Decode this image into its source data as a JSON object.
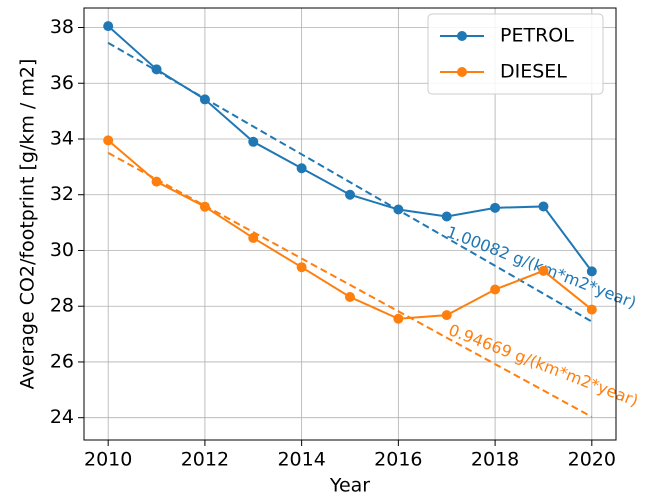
{
  "chart_data": {
    "type": "line",
    "xlabel": "Year",
    "ylabel": "Average CO2/footprint [g/km / m2]",
    "x": [
      2010,
      2011,
      2012,
      2013,
      2014,
      2015,
      2016,
      2017,
      2018,
      2019,
      2020
    ],
    "series": [
      {
        "name": "PETROL",
        "color": "#1f77b4",
        "values": [
          38.05,
          36.5,
          35.42,
          33.9,
          32.95,
          32.0,
          31.47,
          31.22,
          31.53,
          31.58,
          29.25
        ]
      },
      {
        "name": "DIESEL",
        "color": "#ff7f0e",
        "values": [
          33.95,
          32.47,
          31.57,
          30.45,
          29.4,
          28.33,
          27.55,
          27.68,
          28.6,
          29.27,
          27.88
        ]
      }
    ],
    "trendlines": [
      {
        "color": "#1f77b4",
        "x": [
          2010,
          2020
        ],
        "values": [
          37.45,
          27.45
        ],
        "label": "1.00082 g/(km*m2*year)"
      },
      {
        "color": "#ff7f0e",
        "x": [
          2010,
          2020
        ],
        "values": [
          33.5,
          24.03
        ],
        "label": "0.94669 g/(km*m2*year)"
      }
    ],
    "xlim": [
      2009.5,
      2020.5
    ],
    "xticks": [
      2010,
      2012,
      2014,
      2016,
      2018,
      2020
    ],
    "ylim": [
      23.2,
      38.7
    ],
    "yticks": [
      24,
      26,
      28,
      30,
      32,
      34,
      36,
      38
    ],
    "grid": true,
    "legend": "upper right"
  }
}
